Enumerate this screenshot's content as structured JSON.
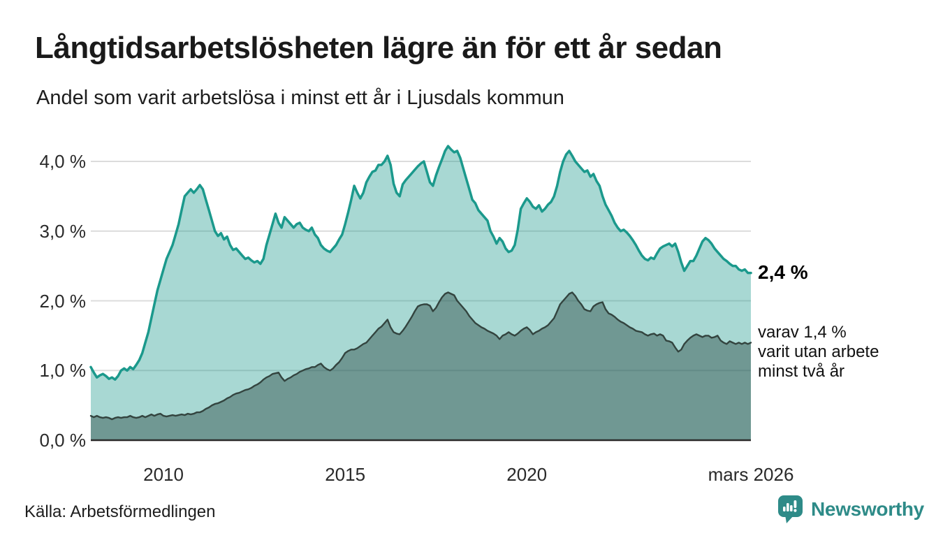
{
  "header": {
    "title": "Långtidsarbetslösheten lägre än för ett år sedan",
    "subtitle": "Andel som varit arbetslösa i minst ett år i Ljusdals kommun"
  },
  "chart_data": {
    "type": "area",
    "title": "Långtidsarbetslösheten lägre än för ett år sedan",
    "x_unit": "month",
    "x_start": "2008-01",
    "x_end": "2026-03",
    "ylim": [
      0,
      4.3
    ],
    "grid": true,
    "y_ticks": [
      {
        "value": 0,
        "label": "0,0 %"
      },
      {
        "value": 1,
        "label": "1,0 %"
      },
      {
        "value": 2,
        "label": "2,0 %"
      },
      {
        "value": 3,
        "label": "3,0 %"
      },
      {
        "value": 4,
        "label": "4,0 %"
      }
    ],
    "x_ticks": [
      {
        "month_index": 24,
        "label": "2010"
      },
      {
        "month_index": 84,
        "label": "2015"
      },
      {
        "month_index": 144,
        "label": "2020"
      },
      {
        "month_index": 218,
        "label": "mars 2026"
      }
    ],
    "series": [
      {
        "name": "Andel arbetslösa minst ett år",
        "color": "#1b998c",
        "fill": "rgba(27,153,140,0.38)",
        "line_width": 3.5,
        "values": [
          1.05,
          0.97,
          0.9,
          0.93,
          0.95,
          0.92,
          0.88,
          0.9,
          0.87,
          0.92,
          1.0,
          1.03,
          1.0,
          1.05,
          1.02,
          1.08,
          1.15,
          1.25,
          1.4,
          1.55,
          1.75,
          1.95,
          2.15,
          2.3,
          2.45,
          2.6,
          2.7,
          2.8,
          2.95,
          3.1,
          3.3,
          3.5,
          3.55,
          3.6,
          3.55,
          3.6,
          3.66,
          3.6,
          3.45,
          3.3,
          3.15,
          3.0,
          2.93,
          2.97,
          2.88,
          2.92,
          2.8,
          2.73,
          2.75,
          2.7,
          2.65,
          2.6,
          2.62,
          2.58,
          2.55,
          2.57,
          2.53,
          2.6,
          2.8,
          2.95,
          3.1,
          3.25,
          3.12,
          3.05,
          3.2,
          3.15,
          3.1,
          3.05,
          3.1,
          3.12,
          3.05,
          3.02,
          3.0,
          3.05,
          2.95,
          2.9,
          2.8,
          2.75,
          2.72,
          2.7,
          2.75,
          2.8,
          2.88,
          2.95,
          3.1,
          3.27,
          3.45,
          3.65,
          3.55,
          3.47,
          3.55,
          3.7,
          3.78,
          3.85,
          3.87,
          3.95,
          3.95,
          4.0,
          4.08,
          3.95,
          3.68,
          3.55,
          3.5,
          3.67,
          3.73,
          3.78,
          3.83,
          3.88,
          3.93,
          3.97,
          4.0,
          3.85,
          3.7,
          3.65,
          3.8,
          3.92,
          4.03,
          4.15,
          4.22,
          4.17,
          4.13,
          4.15,
          4.05,
          3.9,
          3.75,
          3.6,
          3.45,
          3.4,
          3.3,
          3.25,
          3.2,
          3.15,
          3.0,
          2.92,
          2.82,
          2.9,
          2.85,
          2.75,
          2.7,
          2.72,
          2.8,
          3.02,
          3.32,
          3.4,
          3.47,
          3.42,
          3.35,
          3.32,
          3.37,
          3.28,
          3.32,
          3.38,
          3.42,
          3.5,
          3.65,
          3.85,
          4.0,
          4.1,
          4.15,
          4.08,
          4.0,
          3.95,
          3.9,
          3.85,
          3.87,
          3.78,
          3.82,
          3.72,
          3.65,
          3.5,
          3.38,
          3.3,
          3.22,
          3.12,
          3.05,
          3.0,
          3.02,
          2.98,
          2.93,
          2.87,
          2.8,
          2.72,
          2.65,
          2.6,
          2.58,
          2.62,
          2.6,
          2.68,
          2.75,
          2.78,
          2.8,
          2.82,
          2.78,
          2.82,
          2.7,
          2.55,
          2.43,
          2.5,
          2.57,
          2.57,
          2.65,
          2.75,
          2.85,
          2.9,
          2.87,
          2.82,
          2.75,
          2.7,
          2.65,
          2.6,
          2.57,
          2.53,
          2.5,
          2.5,
          2.45,
          2.43,
          2.45,
          2.4,
          2.4
        ]
      },
      {
        "name": "Andel arbetslösa minst två år",
        "color": "#33443f",
        "fill": "rgba(35,64,60,0.42)",
        "line_width": 2.4,
        "values": [
          0.35,
          0.33,
          0.35,
          0.33,
          0.32,
          0.33,
          0.32,
          0.3,
          0.32,
          0.33,
          0.32,
          0.33,
          0.33,
          0.35,
          0.33,
          0.32,
          0.33,
          0.35,
          0.33,
          0.35,
          0.37,
          0.35,
          0.37,
          0.38,
          0.35,
          0.34,
          0.35,
          0.36,
          0.35,
          0.36,
          0.37,
          0.36,
          0.38,
          0.37,
          0.38,
          0.4,
          0.4,
          0.42,
          0.45,
          0.47,
          0.5,
          0.52,
          0.53,
          0.55,
          0.57,
          0.6,
          0.62,
          0.65,
          0.67,
          0.68,
          0.7,
          0.72,
          0.73,
          0.75,
          0.78,
          0.8,
          0.83,
          0.87,
          0.9,
          0.92,
          0.95,
          0.96,
          0.97,
          0.9,
          0.85,
          0.88,
          0.9,
          0.93,
          0.95,
          0.98,
          1.0,
          1.02,
          1.03,
          1.05,
          1.05,
          1.08,
          1.1,
          1.05,
          1.02,
          1.0,
          1.03,
          1.08,
          1.12,
          1.18,
          1.25,
          1.28,
          1.3,
          1.3,
          1.32,
          1.35,
          1.38,
          1.4,
          1.45,
          1.5,
          1.55,
          1.6,
          1.63,
          1.68,
          1.73,
          1.62,
          1.55,
          1.53,
          1.52,
          1.57,
          1.63,
          1.7,
          1.77,
          1.85,
          1.92,
          1.94,
          1.95,
          1.95,
          1.93,
          1.85,
          1.9,
          1.98,
          2.05,
          2.1,
          2.12,
          2.1,
          2.08,
          2.0,
          1.95,
          1.9,
          1.85,
          1.78,
          1.73,
          1.68,
          1.65,
          1.62,
          1.6,
          1.57,
          1.55,
          1.53,
          1.5,
          1.45,
          1.5,
          1.52,
          1.55,
          1.52,
          1.5,
          1.53,
          1.57,
          1.6,
          1.62,
          1.58,
          1.52,
          1.55,
          1.57,
          1.6,
          1.62,
          1.65,
          1.7,
          1.75,
          1.85,
          1.95,
          2.0,
          2.05,
          2.1,
          2.12,
          2.07,
          2.0,
          1.95,
          1.88,
          1.86,
          1.85,
          1.92,
          1.95,
          1.97,
          1.98,
          1.88,
          1.82,
          1.8,
          1.77,
          1.73,
          1.7,
          1.68,
          1.65,
          1.62,
          1.6,
          1.57,
          1.56,
          1.55,
          1.52,
          1.5,
          1.52,
          1.53,
          1.5,
          1.52,
          1.5,
          1.43,
          1.42,
          1.4,
          1.33,
          1.27,
          1.3,
          1.38,
          1.43,
          1.47,
          1.5,
          1.52,
          1.5,
          1.48,
          1.5,
          1.5,
          1.47,
          1.48,
          1.5,
          1.43,
          1.4,
          1.38,
          1.42,
          1.4,
          1.38,
          1.4,
          1.38,
          1.4,
          1.38,
          1.4
        ]
      }
    ],
    "legend_position": "none",
    "colors": {
      "grid": "#dcdcdc",
      "axis": "#2b2b2b",
      "accent": "#1b998c"
    }
  },
  "annotations": {
    "latest_value": "2,4 %",
    "secondary_lines": [
      "varav 1,4 %",
      "varit utan arbete",
      "minst två år"
    ]
  },
  "footer": {
    "source": "Källa: Arbetsförmedlingen",
    "brand": "Newsworthy",
    "brand_color": "#2e8b88"
  }
}
